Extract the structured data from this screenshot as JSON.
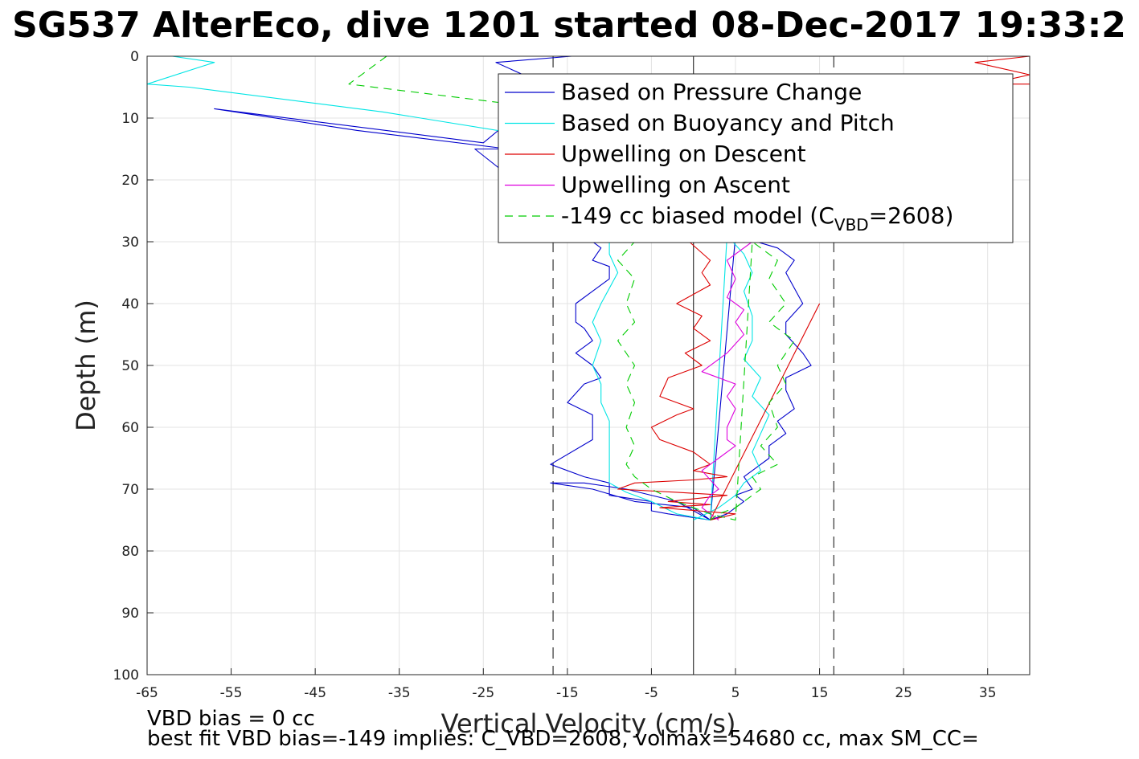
{
  "chart_data": {
    "type": "line",
    "title": "SG537 AlterEco, dive 1201 started 08-Dec-2017 19:33:2",
    "xlabel": "Vertical Velocity (cm/s)",
    "ylabel": "Depth (m)",
    "xlim": [
      -65,
      40
    ],
    "ylim": [
      0,
      100
    ],
    "y_reversed": true,
    "grid": true,
    "x_ticks": [
      -65,
      -55,
      -45,
      -35,
      -25,
      -15,
      -5,
      5,
      15,
      25,
      35
    ],
    "y_ticks": [
      0,
      10,
      20,
      30,
      40,
      50,
      60,
      70,
      80,
      90,
      100
    ],
    "legend": {
      "position": "top-right",
      "entries": [
        {
          "label": "Based on Pressure Change",
          "color": "#0000cc",
          "dash": "solid"
        },
        {
          "label": "Based on Buoyancy and Pitch",
          "color": "#00e5e5",
          "dash": "solid"
        },
        {
          "label": "Upwelling on Descent",
          "color": "#dd0000",
          "dash": "solid"
        },
        {
          "label": "Upwelling on Ascent",
          "color": "#dd00dd",
          "dash": "solid"
        },
        {
          "label_main": "-149 cc biased model (C",
          "label_sub": "VBD",
          "label_end": "=2608)",
          "color": "#00cc00",
          "dash": "dashed"
        }
      ]
    },
    "reference_lines": {
      "zero_line_x": 0,
      "dashed_limits_x": [
        -16.7,
        16.7
      ]
    },
    "series": [
      {
        "name": "Based on Pressure Change",
        "color": "#0000cc",
        "dash": "solid",
        "x": [
          -14.5,
          -23.5,
          -17,
          -25,
          -57,
          -40,
          -22,
          -26,
          -13,
          -11,
          -12,
          -10,
          -10,
          -12,
          -14,
          -14,
          -13,
          -12,
          -14,
          -12,
          -11,
          -13,
          -15,
          -12,
          -12,
          -17,
          -13,
          -10,
          -10,
          -5,
          -5,
          -3,
          2,
          5,
          10,
          12,
          11,
          13,
          11,
          11,
          13,
          14,
          11,
          11,
          12,
          10,
          11,
          9,
          9,
          7,
          6,
          7,
          5,
          6,
          5,
          4,
          2,
          -2,
          -8,
          -13,
          -17,
          -12,
          -7,
          0,
          2
        ],
        "y": [
          0,
          1,
          5,
          14,
          8.5,
          12,
          15,
          15,
          29,
          31,
          33,
          34,
          36,
          38,
          40,
          43,
          44,
          46,
          48,
          50,
          52,
          53,
          56,
          58,
          62,
          66,
          68,
          69,
          71,
          72,
          73.5,
          74,
          75,
          29,
          31,
          33,
          35,
          40,
          43,
          45,
          48,
          50,
          52,
          54,
          57,
          59,
          61,
          63,
          65,
          67,
          68,
          70,
          71,
          72,
          73,
          74,
          75,
          72,
          70,
          69,
          69,
          70,
          72,
          73,
          75
        ]
      },
      {
        "name": "Based on Buoyancy and Pitch",
        "color": "#00e5e5",
        "dash": "solid",
        "x": [
          -62,
          -57,
          -65,
          -60,
          -37,
          -21,
          -10,
          -10,
          -9,
          -11,
          -12,
          -11,
          -12,
          -11,
          -11,
          -10,
          -10,
          -10,
          -10,
          -8,
          -5,
          -2,
          2,
          4,
          6,
          7,
          6,
          7,
          7,
          6,
          8,
          7,
          9,
          8,
          7,
          8,
          6,
          5,
          3,
          0
        ],
        "y": [
          0,
          1,
          4.5,
          5,
          9,
          12.5,
          29,
          32,
          35,
          40,
          43,
          46,
          50,
          53,
          56,
          59,
          62,
          66,
          69,
          70.5,
          72,
          74,
          75,
          29,
          32,
          35,
          38,
          42,
          46,
          49,
          52,
          55,
          58,
          61,
          64,
          67,
          69,
          71,
          73,
          75
        ]
      },
      {
        "name": "Upwelling on Descent",
        "color": "#dd0000",
        "dash": "solid",
        "x": [
          -0.5,
          2,
          1,
          2,
          -2,
          1,
          0,
          2,
          -1,
          1,
          -3,
          -4,
          0,
          -2,
          -5,
          -4,
          0,
          2,
          0,
          4,
          0,
          -7,
          -9,
          -2,
          4,
          -3,
          2,
          -4,
          5,
          2,
          15
        ],
        "y": [
          30,
          33,
          35,
          37,
          40,
          42,
          44,
          46,
          48,
          50,
          52,
          55,
          57,
          58,
          60,
          62,
          64,
          66,
          67,
          68,
          68.5,
          69,
          70,
          70.5,
          71,
          72,
          72.5,
          73,
          74,
          75,
          40
        ]
      },
      {
        "name": "Upwelling on Ascent",
        "color": "#dd00dd",
        "dash": "solid",
        "x": [
          7,
          4,
          5,
          4,
          6,
          5,
          6,
          4,
          1,
          5,
          4,
          5,
          4,
          4,
          5,
          3,
          2,
          1,
          3,
          2,
          1,
          3
        ],
        "y": [
          30,
          33,
          36,
          39,
          41,
          43,
          45,
          48,
          51,
          53,
          55,
          57,
          60,
          62,
          63,
          65,
          66,
          67,
          70,
          71,
          73,
          75
        ]
      },
      {
        "name": "-149 cc biased model (C_VBD=2608)",
        "color": "#00cc00",
        "dash": "dashed",
        "x": [
          -36.5,
          -41,
          -20,
          -7,
          -9,
          -7,
          -8,
          -7,
          -9,
          -7,
          -8,
          -7,
          -8,
          -7,
          -8,
          -7,
          -5,
          -2,
          2,
          5,
          7,
          10,
          9,
          11,
          9,
          12,
          10,
          11,
          9,
          10,
          8,
          10,
          7,
          8,
          6,
          5,
          3,
          2
        ],
        "y": [
          0,
          4.5,
          8,
          30,
          33,
          36,
          40,
          43,
          46,
          50,
          53,
          56,
          60,
          63,
          66,
          68,
          70,
          72,
          74,
          75,
          30,
          33,
          36,
          40,
          43,
          46,
          50,
          53,
          56,
          60,
          63,
          66,
          68,
          70,
          72,
          73,
          74,
          75
        ]
      },
      {
        "name": "Upwelling on Descent (surface)",
        "color": "#dd0000",
        "dash": "solid",
        "x": [
          40,
          33.5,
          40,
          35,
          40
        ],
        "y": [
          0,
          1,
          3,
          4.5,
          4.5
        ]
      }
    ],
    "annotations": [
      "VBD bias = 0 cc",
      "best fit VBD bias=-149 implies: C_VBD=2608, volmax=54680 cc, max SM_CC="
    ]
  }
}
